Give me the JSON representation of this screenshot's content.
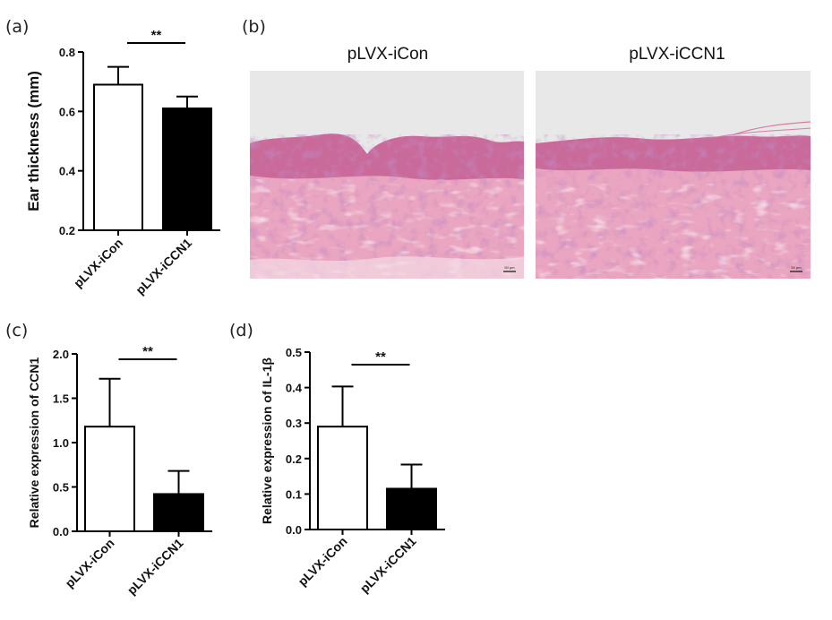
{
  "panels": {
    "a": "(a)",
    "b": "(b)",
    "c": "(c)",
    "d": "(d)"
  },
  "images": {
    "left_title": "pLVX-iCon",
    "right_title": "pLVX-iCCN1",
    "scale_bar_left": "50 µm",
    "scale_bar_right": "50 µm"
  },
  "colors": {
    "bar_control": "#ffffff",
    "bar_treated": "#000000",
    "tissue_pink": "#e7a3bd",
    "background_gray": "#e6e6e6"
  },
  "chart_data": [
    {
      "id": "a",
      "type": "bar",
      "categories": [
        "pLVX-iCon",
        "pLVX-iCCN1"
      ],
      "values": [
        0.69,
        0.61
      ],
      "errors": [
        0.06,
        0.04
      ],
      "ylabel": "Ear thickness (mm)",
      "ylim": [
        0.2,
        0.8
      ],
      "yticks": [
        "0.2",
        "0.4",
        "0.6",
        "0.8"
      ],
      "significance": "**"
    },
    {
      "id": "c",
      "type": "bar",
      "categories": [
        "pLVX-iCon",
        "pLVX-iCCN1"
      ],
      "values": [
        1.18,
        0.42
      ],
      "errors": [
        0.54,
        0.26
      ],
      "ylabel": "Relative expression of CCN1",
      "ylim": [
        0,
        2.0
      ],
      "yticks": [
        "0.0",
        "0.5",
        "1.0",
        "1.5",
        "2.0"
      ],
      "significance": "**"
    },
    {
      "id": "d",
      "type": "bar",
      "categories": [
        "pLVX-iCon",
        "pLVX-iCCN1"
      ],
      "values": [
        0.29,
        0.115
      ],
      "errors": [
        0.113,
        0.068
      ],
      "ylabel": "Relative expression of IL-1β",
      "ylim": [
        0,
        0.5
      ],
      "yticks": [
        "0.0",
        "0.1",
        "0.2",
        "0.3",
        "0.4",
        "0.5"
      ],
      "significance": "**"
    }
  ]
}
